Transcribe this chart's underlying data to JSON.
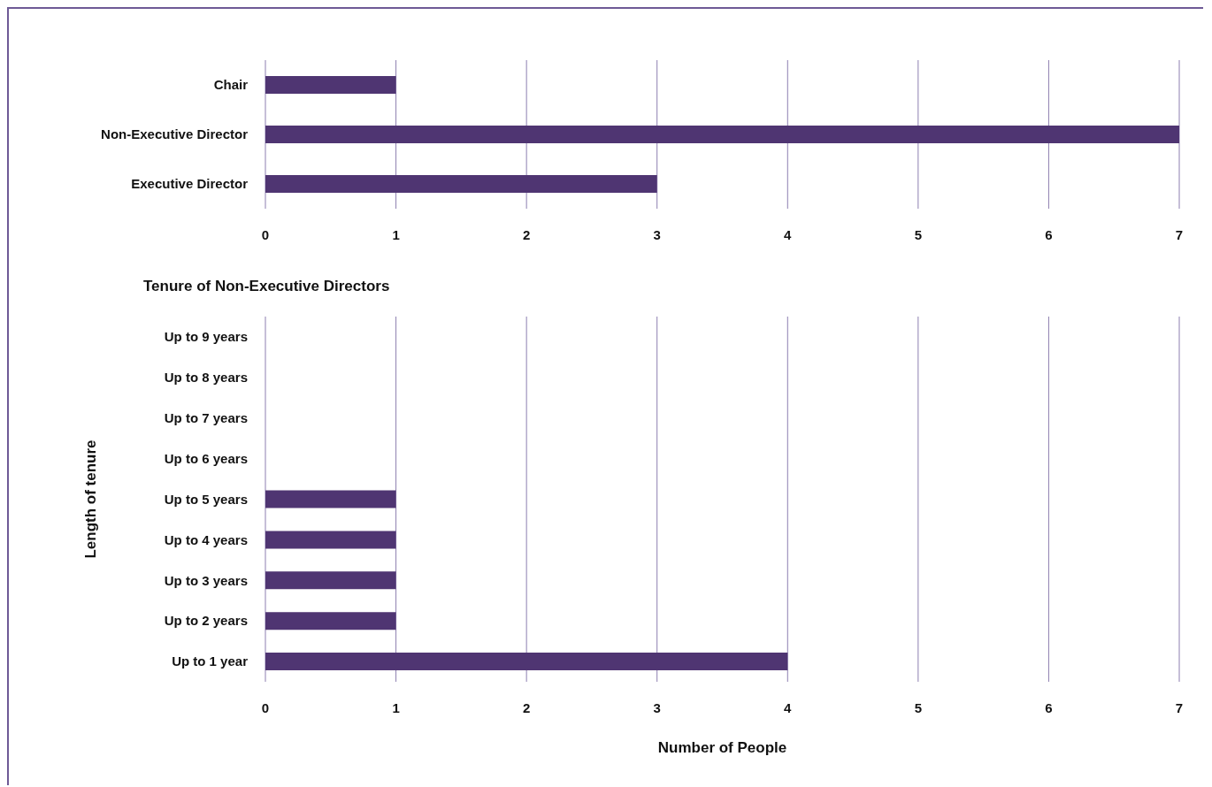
{
  "chart_data": [
    {
      "type": "bar",
      "orientation": "horizontal",
      "categories": [
        "Chair",
        "Non-Executive Director",
        "Executive Director"
      ],
      "series": [
        {
          "color": "#4f3572",
          "values": [
            1,
            7,
            3
          ]
        }
      ],
      "xlim": [
        0,
        7
      ],
      "xticks": [
        0,
        1,
        2,
        3,
        4,
        5,
        6,
        7
      ],
      "grid": "x",
      "legend": false
    },
    {
      "type": "bar",
      "orientation": "horizontal",
      "title": "Tenure of Non-Executive Directors",
      "xlabel": "Number of People",
      "ylabel": "Length of tenure",
      "categories": [
        "Up to 9 years",
        "Up to 8 years",
        "Up to 7 years",
        "Up to 6 years",
        "Up to 5 years",
        "Up to 4 years",
        "Up to 3 years",
        "Up to 2 years",
        "Up to 1 year"
      ],
      "series": [
        {
          "color": "#4f3572",
          "values": [
            0,
            0,
            0,
            0,
            1,
            1,
            1,
            1,
            4
          ]
        }
      ],
      "xlim": [
        0,
        7
      ],
      "xticks": [
        0,
        1,
        2,
        3,
        4,
        5,
        6,
        7
      ],
      "grid": "x",
      "legend": false
    }
  ]
}
